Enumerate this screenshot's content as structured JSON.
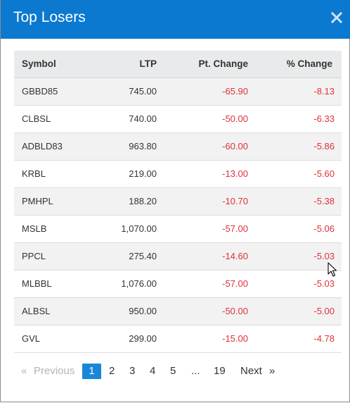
{
  "modal": {
    "title": "Top Losers",
    "close_symbol": "×"
  },
  "table": {
    "columns": [
      "Symbol",
      "LTP",
      "Pt. Change",
      "% Change"
    ],
    "rows": [
      {
        "symbol": "GBBD85",
        "ltp": "745.00",
        "pt_change": "-65.90",
        "pct_change": "-8.13"
      },
      {
        "symbol": "CLBSL",
        "ltp": "740.00",
        "pt_change": "-50.00",
        "pct_change": "-6.33"
      },
      {
        "symbol": "ADBLD83",
        "ltp": "963.80",
        "pt_change": "-60.00",
        "pct_change": "-5.86"
      },
      {
        "symbol": "KRBL",
        "ltp": "219.00",
        "pt_change": "-13.00",
        "pct_change": "-5.60"
      },
      {
        "symbol": "PMHPL",
        "ltp": "188.20",
        "pt_change": "-10.70",
        "pct_change": "-5.38"
      },
      {
        "symbol": "MSLB",
        "ltp": "1,070.00",
        "pt_change": "-57.00",
        "pct_change": "-5.06"
      },
      {
        "symbol": "PPCL",
        "ltp": "275.40",
        "pt_change": "-14.60",
        "pct_change": "-5.03"
      },
      {
        "symbol": "MLBBL",
        "ltp": "1,076.00",
        "pt_change": "-57.00",
        "pct_change": "-5.03"
      },
      {
        "symbol": "ALBSL",
        "ltp": "950.00",
        "pt_change": "-50.00",
        "pct_change": "-5.00"
      },
      {
        "symbol": "GVL",
        "ltp": "299.00",
        "pt_change": "-15.00",
        "pct_change": "-4.78"
      }
    ]
  },
  "pagination": {
    "prev_arrow": "«",
    "previous": "Previous",
    "pages": [
      "1",
      "2",
      "3",
      "4",
      "5"
    ],
    "ellipsis": "...",
    "last_page": "19",
    "next": "Next",
    "next_arrow": "»",
    "current_page": "1"
  },
  "colors": {
    "header_bg": "#0b79d0",
    "negative": "#e0303a",
    "active_page": "#1a86d8"
  }
}
